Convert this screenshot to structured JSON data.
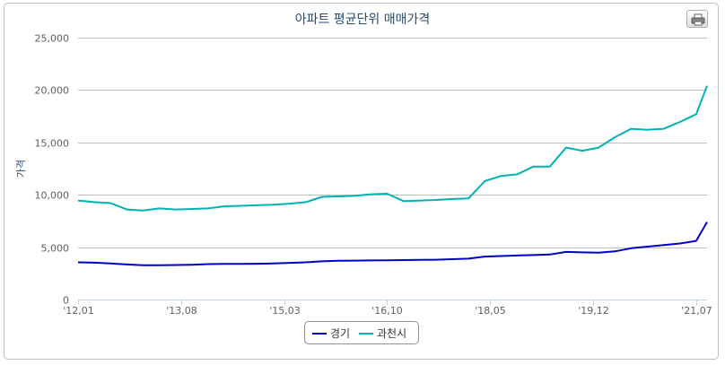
{
  "title": "아파트 평균단위 매매가격",
  "print_icon": "printer-icon",
  "colors": {
    "gyeonggi": "#0000cc",
    "gwacheon": "#00b2b2",
    "grid": "#c0c0c0",
    "axis": "#c0d0e0",
    "title": "#274b6d"
  },
  "chart_data": {
    "type": "line",
    "title": "아파트 평균단위 매매가격",
    "xlabel": "",
    "ylabel": "가격",
    "ylim": [
      0,
      25000
    ],
    "yticks": [
      "0",
      "5,000",
      "10,000",
      "15,000",
      "20,000",
      "25,000"
    ],
    "xticks": [
      "'12,01",
      "'13,08",
      "'15,03",
      "'16,10",
      "'18,05",
      "'19,12",
      "'21,07"
    ],
    "x": [
      "2012-01",
      "2012-04",
      "2012-07",
      "2012-10",
      "2013-01",
      "2013-04",
      "2013-07",
      "2013-10",
      "2014-01",
      "2014-04",
      "2014-07",
      "2014-10",
      "2015-01",
      "2015-04",
      "2015-07",
      "2015-10",
      "2016-01",
      "2016-04",
      "2016-07",
      "2016-10",
      "2017-01",
      "2017-04",
      "2017-07",
      "2017-10",
      "2018-01",
      "2018-04",
      "2018-07",
      "2018-10",
      "2019-01",
      "2019-04",
      "2019-07",
      "2019-10",
      "2020-01",
      "2020-04",
      "2020-07",
      "2020-10",
      "2021-01",
      "2021-04",
      "2021-07",
      "2021-09"
    ],
    "series": [
      {
        "name": "경기",
        "values": [
          3550,
          3520,
          3450,
          3350,
          3280,
          3280,
          3300,
          3320,
          3380,
          3400,
          3400,
          3420,
          3450,
          3500,
          3550,
          3650,
          3700,
          3720,
          3730,
          3740,
          3770,
          3780,
          3800,
          3850,
          3900,
          4100,
          4150,
          4200,
          4250,
          4300,
          4550,
          4500,
          4480,
          4600,
          4900,
          5050,
          5200,
          5350,
          5600,
          7400
        ]
      },
      {
        "name": "과천시",
        "values": [
          9450,
          9300,
          9200,
          8600,
          8500,
          8700,
          8600,
          8650,
          8700,
          8900,
          8950,
          9000,
          9050,
          9150,
          9300,
          9800,
          9850,
          9900,
          10050,
          10100,
          9400,
          9450,
          9500,
          9600,
          9650,
          11300,
          11800,
          11950,
          12700,
          12700,
          14500,
          14200,
          14500,
          15500,
          16300,
          16200,
          16300,
          16950,
          17700,
          20400
        ]
      }
    ]
  },
  "legend": {
    "items": [
      "경기",
      "과천시"
    ]
  }
}
